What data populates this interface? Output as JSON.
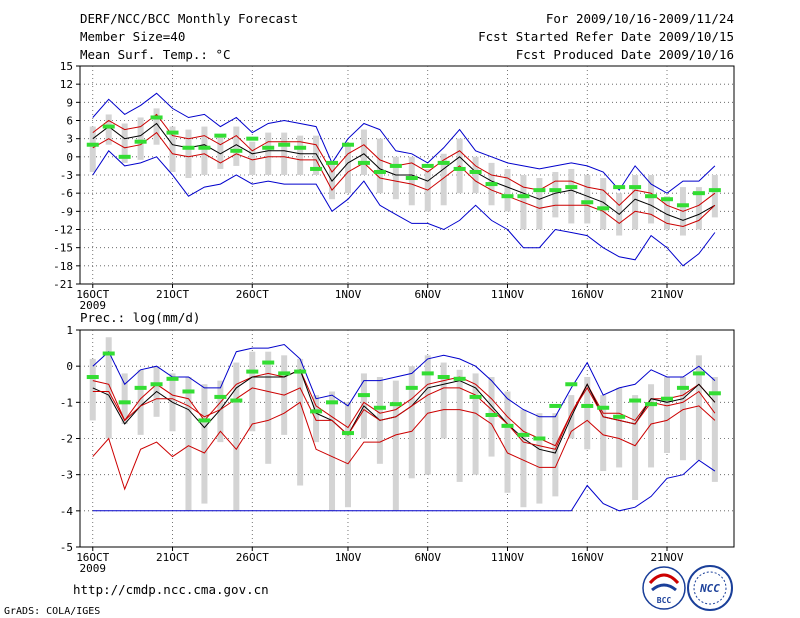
{
  "header": {
    "title": "DERF/NCC/BCC Monthly Forecast",
    "member_size": "Member Size=40",
    "variable": "Mean Surf. Temp.: °C",
    "period": "For 2009/10/16-2009/11/24",
    "start_date": "Fcst Started Refer Date 2009/10/15",
    "produced_date": "Fcst Produced Date 2009/10/16"
  },
  "footer": {
    "url": "http://cmdp.ncc.cma.gov.cn",
    "credit": "GrADS: COLA/IGES",
    "logo_bcc": "BCC",
    "logo_ncc": "NCC"
  },
  "colors": {
    "envelope": "#0000cc",
    "percentile": "#cc0000",
    "mean": "#000000",
    "bar": "#d4d4d4",
    "marker": "#33dd33"
  },
  "chart_data": [
    {
      "type": "line",
      "title": "Mean Surf. Temp.: °C",
      "x": [
        1,
        2,
        3,
        4,
        5,
        6,
        7,
        8,
        9,
        10,
        11,
        12,
        13,
        14,
        15,
        16,
        17,
        18,
        19,
        20,
        21,
        22,
        23,
        24,
        25,
        26,
        27,
        28,
        29,
        30,
        31,
        32,
        33,
        34,
        35,
        36,
        37,
        38,
        39,
        40
      ],
      "x_tick_labels": [
        {
          "x": 1,
          "label": "16OCT"
        },
        {
          "x": 6,
          "label": "21OCT"
        },
        {
          "x": 11,
          "label": "26OCT"
        },
        {
          "x": 17,
          "label": "1NOV"
        },
        {
          "x": 22,
          "label": "6NOV"
        },
        {
          "x": 27,
          "label": "11NOV"
        },
        {
          "x": 32,
          "label": "16NOV"
        },
        {
          "x": 37,
          "label": "21NOV"
        }
      ],
      "x_sub_label": "2009",
      "ylim": [
        -21,
        15
      ],
      "yticks": [
        -21,
        -18,
        -15,
        -12,
        -9,
        -6,
        -3,
        0,
        3,
        6,
        9,
        12,
        15
      ],
      "grid": true,
      "series": [
        {
          "name": "max",
          "color": "#0000cc",
          "values": [
            6.5,
            9.5,
            7,
            8.5,
            10.5,
            8,
            6.5,
            7,
            5,
            6.5,
            4,
            5.5,
            6,
            5.5,
            5,
            -1,
            3,
            5.5,
            4.5,
            1,
            0.5,
            -1,
            1.5,
            4.5,
            1,
            0,
            -1,
            -1.5,
            -2,
            -1.5,
            -1,
            -1.5,
            -2.5,
            -5.5,
            -1.5,
            -4.5,
            -6,
            -4,
            -4,
            -1.5
          ]
        },
        {
          "name": "p90",
          "color": "#cc0000",
          "values": [
            4,
            6,
            4.5,
            5,
            7,
            3.5,
            3,
            3.5,
            2,
            3.5,
            1,
            2.5,
            2.5,
            2.5,
            2,
            -2.5,
            0.5,
            2,
            -0.5,
            -1.5,
            -1,
            -2.5,
            -0.5,
            1,
            -1.5,
            -3,
            -3.5,
            -5,
            -5.5,
            -4,
            -4,
            -5,
            -5.5,
            -8,
            -5.5,
            -6,
            -8,
            -9,
            -8,
            -6
          ]
        },
        {
          "name": "mean",
          "color": "#000000",
          "values": [
            3,
            5,
            3,
            3.5,
            5.5,
            2,
            1.5,
            2,
            0.5,
            2,
            0.5,
            1,
            1,
            0.5,
            0.5,
            -4,
            -1,
            0.5,
            -2,
            -3,
            -3,
            -4,
            -2,
            0,
            -2.5,
            -4,
            -5,
            -6,
            -7,
            -6,
            -5.5,
            -6.5,
            -7.5,
            -9.5,
            -7,
            -8,
            -9.5,
            -10.5,
            -9.5,
            -8
          ]
        },
        {
          "name": "p10",
          "color": "#cc0000",
          "values": [
            1.5,
            3,
            1.5,
            2,
            4,
            0.5,
            0,
            0.5,
            -1,
            0.5,
            -0.5,
            0,
            0,
            -0.5,
            -0.5,
            -5.5,
            -2.5,
            -1,
            -3.5,
            -4,
            -4.5,
            -5.5,
            -3.5,
            -1.5,
            -4,
            -5.5,
            -6.5,
            -7.5,
            -8.5,
            -8,
            -8,
            -8,
            -9,
            -11,
            -9,
            -9.5,
            -11,
            -11.5,
            -10.5,
            -8
          ]
        },
        {
          "name": "min",
          "color": "#0000cc",
          "values": [
            -3,
            1,
            -1.5,
            -1,
            0,
            -3,
            -6.5,
            -5,
            -4.5,
            -3,
            -4.5,
            -4,
            -4.5,
            -4.5,
            -4.5,
            -9,
            -7,
            -4,
            -8,
            -9.5,
            -11,
            -11,
            -12,
            -10.5,
            -8,
            -10.5,
            -12,
            -15,
            -15,
            -12,
            -12.5,
            -13,
            -15,
            -16.5,
            -17,
            -13,
            -15,
            -18,
            -16,
            -12.5
          ]
        }
      ],
      "bars": {
        "name": "member-range",
        "low": [
          -2.5,
          2,
          -1,
          -0.5,
          2,
          -2.5,
          -3.5,
          -3,
          -2,
          -1.5,
          -3,
          -3,
          -3,
          -3,
          -3,
          -7,
          -6,
          -3,
          -6,
          -7,
          -8,
          -9,
          -8,
          -6,
          -6,
          -8,
          -9,
          -12,
          -12,
          -10,
          -11,
          -11,
          -12,
          -13,
          -12,
          -11,
          -12,
          -13,
          -12,
          -10
        ],
        "high": [
          5,
          7,
          5.5,
          6.5,
          8,
          5,
          4.5,
          5,
          3.5,
          5,
          2.5,
          4,
          4,
          3.5,
          3.5,
          -1,
          2,
          4.5,
          3,
          0,
          0,
          -2,
          0.5,
          3,
          0,
          -1,
          -2,
          -3,
          -3.5,
          -2.5,
          -2,
          -3,
          -3.5,
          -6,
          -3,
          -3,
          -6.5,
          -5,
          -5,
          -3
        ]
      },
      "markers": {
        "name": "deterministic",
        "values": [
          2,
          5,
          0,
          2.5,
          6.5,
          4,
          1.5,
          1.5,
          3.5,
          1,
          3,
          1.5,
          2,
          1.5,
          -2,
          -1,
          2,
          -1,
          -2.5,
          -1.5,
          -3.5,
          -1.5,
          -1,
          -2,
          -2.5,
          -4.5,
          -6.5,
          -6.5,
          -5.5,
          -5.5,
          -5,
          -7.5,
          -8.5,
          -5,
          -5,
          -6.5,
          -7,
          -8,
          -6,
          -5.5
        ]
      }
    },
    {
      "type": "line",
      "title": "Prec.: log(mm/d)",
      "x": [
        1,
        2,
        3,
        4,
        5,
        6,
        7,
        8,
        9,
        10,
        11,
        12,
        13,
        14,
        15,
        16,
        17,
        18,
        19,
        20,
        21,
        22,
        23,
        24,
        25,
        26,
        27,
        28,
        29,
        30,
        31,
        32,
        33,
        34,
        35,
        36,
        37,
        38,
        39,
        40
      ],
      "x_tick_labels": [
        {
          "x": 1,
          "label": "16OCT"
        },
        {
          "x": 6,
          "label": "21OCT"
        },
        {
          "x": 11,
          "label": "26OCT"
        },
        {
          "x": 17,
          "label": "1NOV"
        },
        {
          "x": 22,
          "label": "6NOV"
        },
        {
          "x": 27,
          "label": "11NOV"
        },
        {
          "x": 32,
          "label": "16NOV"
        },
        {
          "x": 37,
          "label": "21NOV"
        }
      ],
      "x_sub_label": "2009",
      "ylim": [
        -5,
        1
      ],
      "yticks": [
        -5,
        -4,
        -3,
        -2,
        -1,
        0,
        1
      ],
      "grid": true,
      "series": [
        {
          "name": "max",
          "color": "#0000cc",
          "values": [
            0,
            0.4,
            -0.5,
            -0.1,
            0,
            -0.3,
            -0.3,
            -0.6,
            -0.6,
            0.4,
            0.5,
            0.5,
            0.6,
            0.2,
            -0.9,
            -0.8,
            -1.1,
            -0.4,
            -0.4,
            -0.3,
            -0.2,
            0.2,
            0.3,
            0.2,
            0,
            -0.4,
            -0.9,
            -1.2,
            -1.4,
            -1.4,
            -0.6,
            0.1,
            -0.8,
            -0.6,
            -0.5,
            -0.1,
            -0.3,
            -0.3,
            0,
            -0.4
          ]
        },
        {
          "name": "p90",
          "color": "#cc0000",
          "values": [
            -0.4,
            -0.5,
            -1.5,
            -0.9,
            -0.5,
            -0.8,
            -0.9,
            -1.5,
            -1.0,
            -0.5,
            -0.3,
            -0.2,
            -0.3,
            -0.1,
            -1.1,
            -1.4,
            -1.7,
            -1.0,
            -1.3,
            -1.2,
            -0.9,
            -0.5,
            -0.4,
            -0.3,
            -0.5,
            -0.9,
            -1.4,
            -1.8,
            -2.0,
            -2.2,
            -1.3,
            -0.5,
            -1.3,
            -1.3,
            -1.5,
            -0.9,
            -0.9,
            -0.8,
            -0.5,
            -1.0
          ]
        },
        {
          "name": "mean",
          "color": "#000000",
          "values": [
            -0.6,
            -0.8,
            -1.6,
            -1.1,
            -0.7,
            -1.0,
            -1.2,
            -1.7,
            -1.2,
            -0.6,
            -0.3,
            -0.3,
            -0.3,
            -0.1,
            -1.3,
            -1.5,
            -1.9,
            -1.1,
            -1.5,
            -1.4,
            -1.1,
            -0.6,
            -0.5,
            -0.4,
            -0.6,
            -1.1,
            -1.6,
            -2.0,
            -2.3,
            -2.4,
            -1.4,
            -0.5,
            -1.4,
            -1.5,
            -1.6,
            -0.9,
            -1.0,
            -0.9,
            -0.5,
            -1.0
          ]
        },
        {
          "name": "p10",
          "color": "#cc0000",
          "values": [
            -0.7,
            -0.7,
            -1.5,
            -1.1,
            -0.9,
            -0.9,
            -1.1,
            -1.4,
            -1.2,
            -0.9,
            -0.6,
            -0.7,
            -0.8,
            -0.6,
            -1.5,
            -1.5,
            -1.9,
            -1.2,
            -1.5,
            -1.4,
            -1.1,
            -0.8,
            -0.6,
            -0.6,
            -0.8,
            -1.2,
            -1.6,
            -2.1,
            -2.2,
            -2.3,
            -1.3,
            -0.6,
            -1.4,
            -1.5,
            -1.6,
            -1.0,
            -1.1,
            -1.0,
            -0.7,
            -1.3
          ]
        },
        {
          "name": "min",
          "color": "#cc0000",
          "values": [
            -2.5,
            -2.0,
            -3.4,
            -2.3,
            -2.1,
            -2.5,
            -2.2,
            -2.4,
            -1.8,
            -2.3,
            -1.6,
            -1.5,
            -1.3,
            -1.0,
            -2.3,
            -2.5,
            -2.7,
            -2.1,
            -2.1,
            -1.9,
            -1.8,
            -1.3,
            -1.2,
            -1.2,
            -1.3,
            -1.6,
            -2.4,
            -2.6,
            -2.8,
            -2.8,
            -1.8,
            -1.5,
            -1.9,
            -2.0,
            -2.2,
            -1.6,
            -1.5,
            -1.2,
            -1.1,
            -1.5
          ]
        },
        {
          "name": "floor",
          "color": "#0000cc",
          "values": [
            -4,
            -4,
            -4,
            -4,
            -4,
            -4,
            -4,
            -4,
            -4,
            -4,
            -4,
            -4,
            -4,
            -4,
            -4,
            -4,
            -4,
            -4,
            -4,
            -4,
            -4,
            -4,
            -4,
            -4,
            -4,
            -4,
            -4,
            -4,
            -4,
            -4,
            -4,
            -3.3,
            -3.8,
            -4.0,
            -3.9,
            -3.6,
            -3.1,
            -3.0,
            -2.6,
            -2.9
          ]
        }
      ],
      "bars": {
        "name": "member-range",
        "low": [
          -1.5,
          -2.0,
          -1.6,
          -1.9,
          -1.4,
          -1.8,
          -4.0,
          -3.8,
          -2.1,
          -4.0,
          -1.8,
          -2.7,
          -1.9,
          -3.3,
          -2.1,
          -4.0,
          -3.9,
          -2.0,
          -2.7,
          -4.0,
          -3.1,
          -3.0,
          -2.0,
          -3.2,
          -3.0,
          -2.5,
          -3.5,
          -3.9,
          -3.8,
          -3.6,
          -2.0,
          -2.3,
          -2.9,
          -2.8,
          -3.7,
          -2.8,
          -2.4,
          -2.6,
          -2.6,
          -3.2
        ],
        "high": [
          0.2,
          0.8,
          -0.2,
          -0.1,
          0,
          -0.2,
          -0.3,
          -0.5,
          -0.4,
          0.1,
          0.4,
          0.4,
          0.3,
          0.2,
          -0.8,
          -0.7,
          -1.0,
          -0.2,
          -0.3,
          -0.4,
          0,
          0.3,
          0.1,
          -0.1,
          -0.2,
          -0.3,
          -0.7,
          -1.2,
          -1.3,
          -1.3,
          -0.8,
          -0.3,
          -0.8,
          -0.6,
          -0.8,
          -0.5,
          -0.3,
          -0.3,
          0.3,
          -0.3
        ]
      },
      "markers": {
        "name": "deterministic",
        "values": [
          -0.3,
          0.35,
          -1.0,
          -0.6,
          -0.5,
          -0.35,
          -0.7,
          -1.5,
          -0.85,
          -0.95,
          -0.15,
          0.1,
          -0.2,
          -0.15,
          -1.25,
          -1.0,
          -1.85,
          -0.8,
          -1.15,
          -1.05,
          -0.6,
          -0.2,
          -0.3,
          -0.35,
          -0.85,
          -1.35,
          -1.65,
          -1.9,
          -2.0,
          -1.1,
          -0.5,
          -1.1,
          -1.15,
          -1.4,
          -0.95,
          -1.05,
          -0.9,
          -0.6,
          -0.2,
          -0.75
        ]
      }
    }
  ]
}
